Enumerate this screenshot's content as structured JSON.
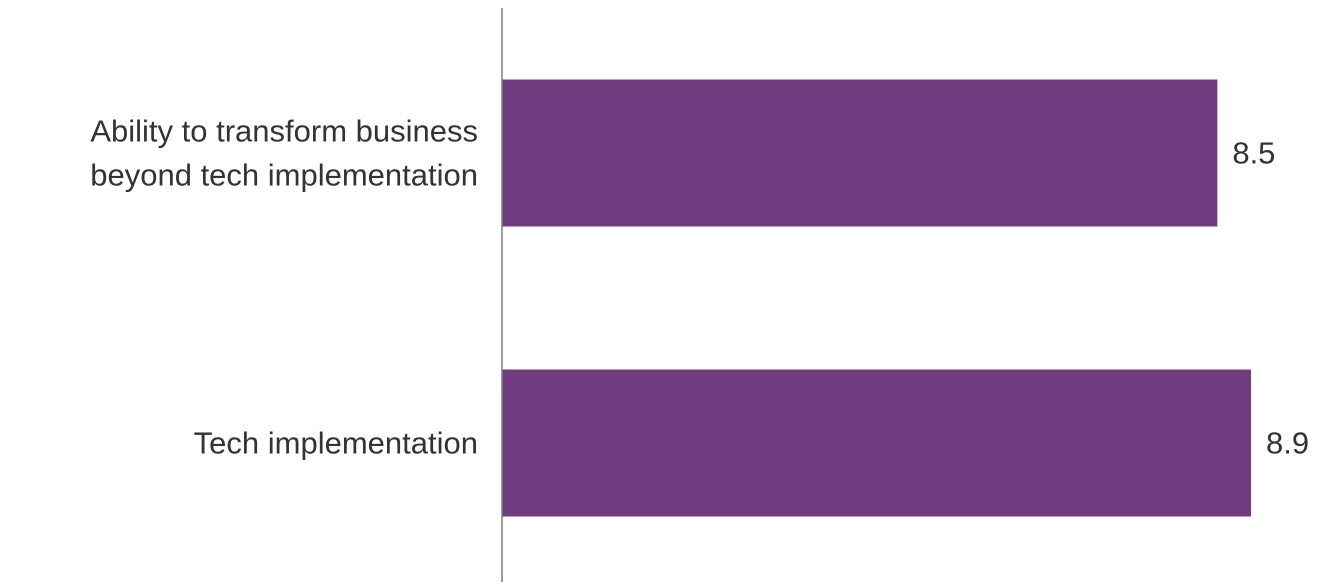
{
  "chart_data": {
    "type": "bar",
    "orientation": "horizontal",
    "categories": [
      [
        "Ability to transform business",
        "beyond tech implementation"
      ],
      [
        "Tech implementation"
      ]
    ],
    "values": [
      8.5,
      8.9
    ],
    "data_labels": [
      "8.5",
      "8.9"
    ],
    "xlim": [
      0,
      8.9
    ],
    "grid": false,
    "legend": "none",
    "title": "",
    "xlabel": "",
    "ylabel": "",
    "colors": {
      "bar": "#713b80",
      "axis": "#7f7f7f",
      "text": "#333333"
    }
  }
}
